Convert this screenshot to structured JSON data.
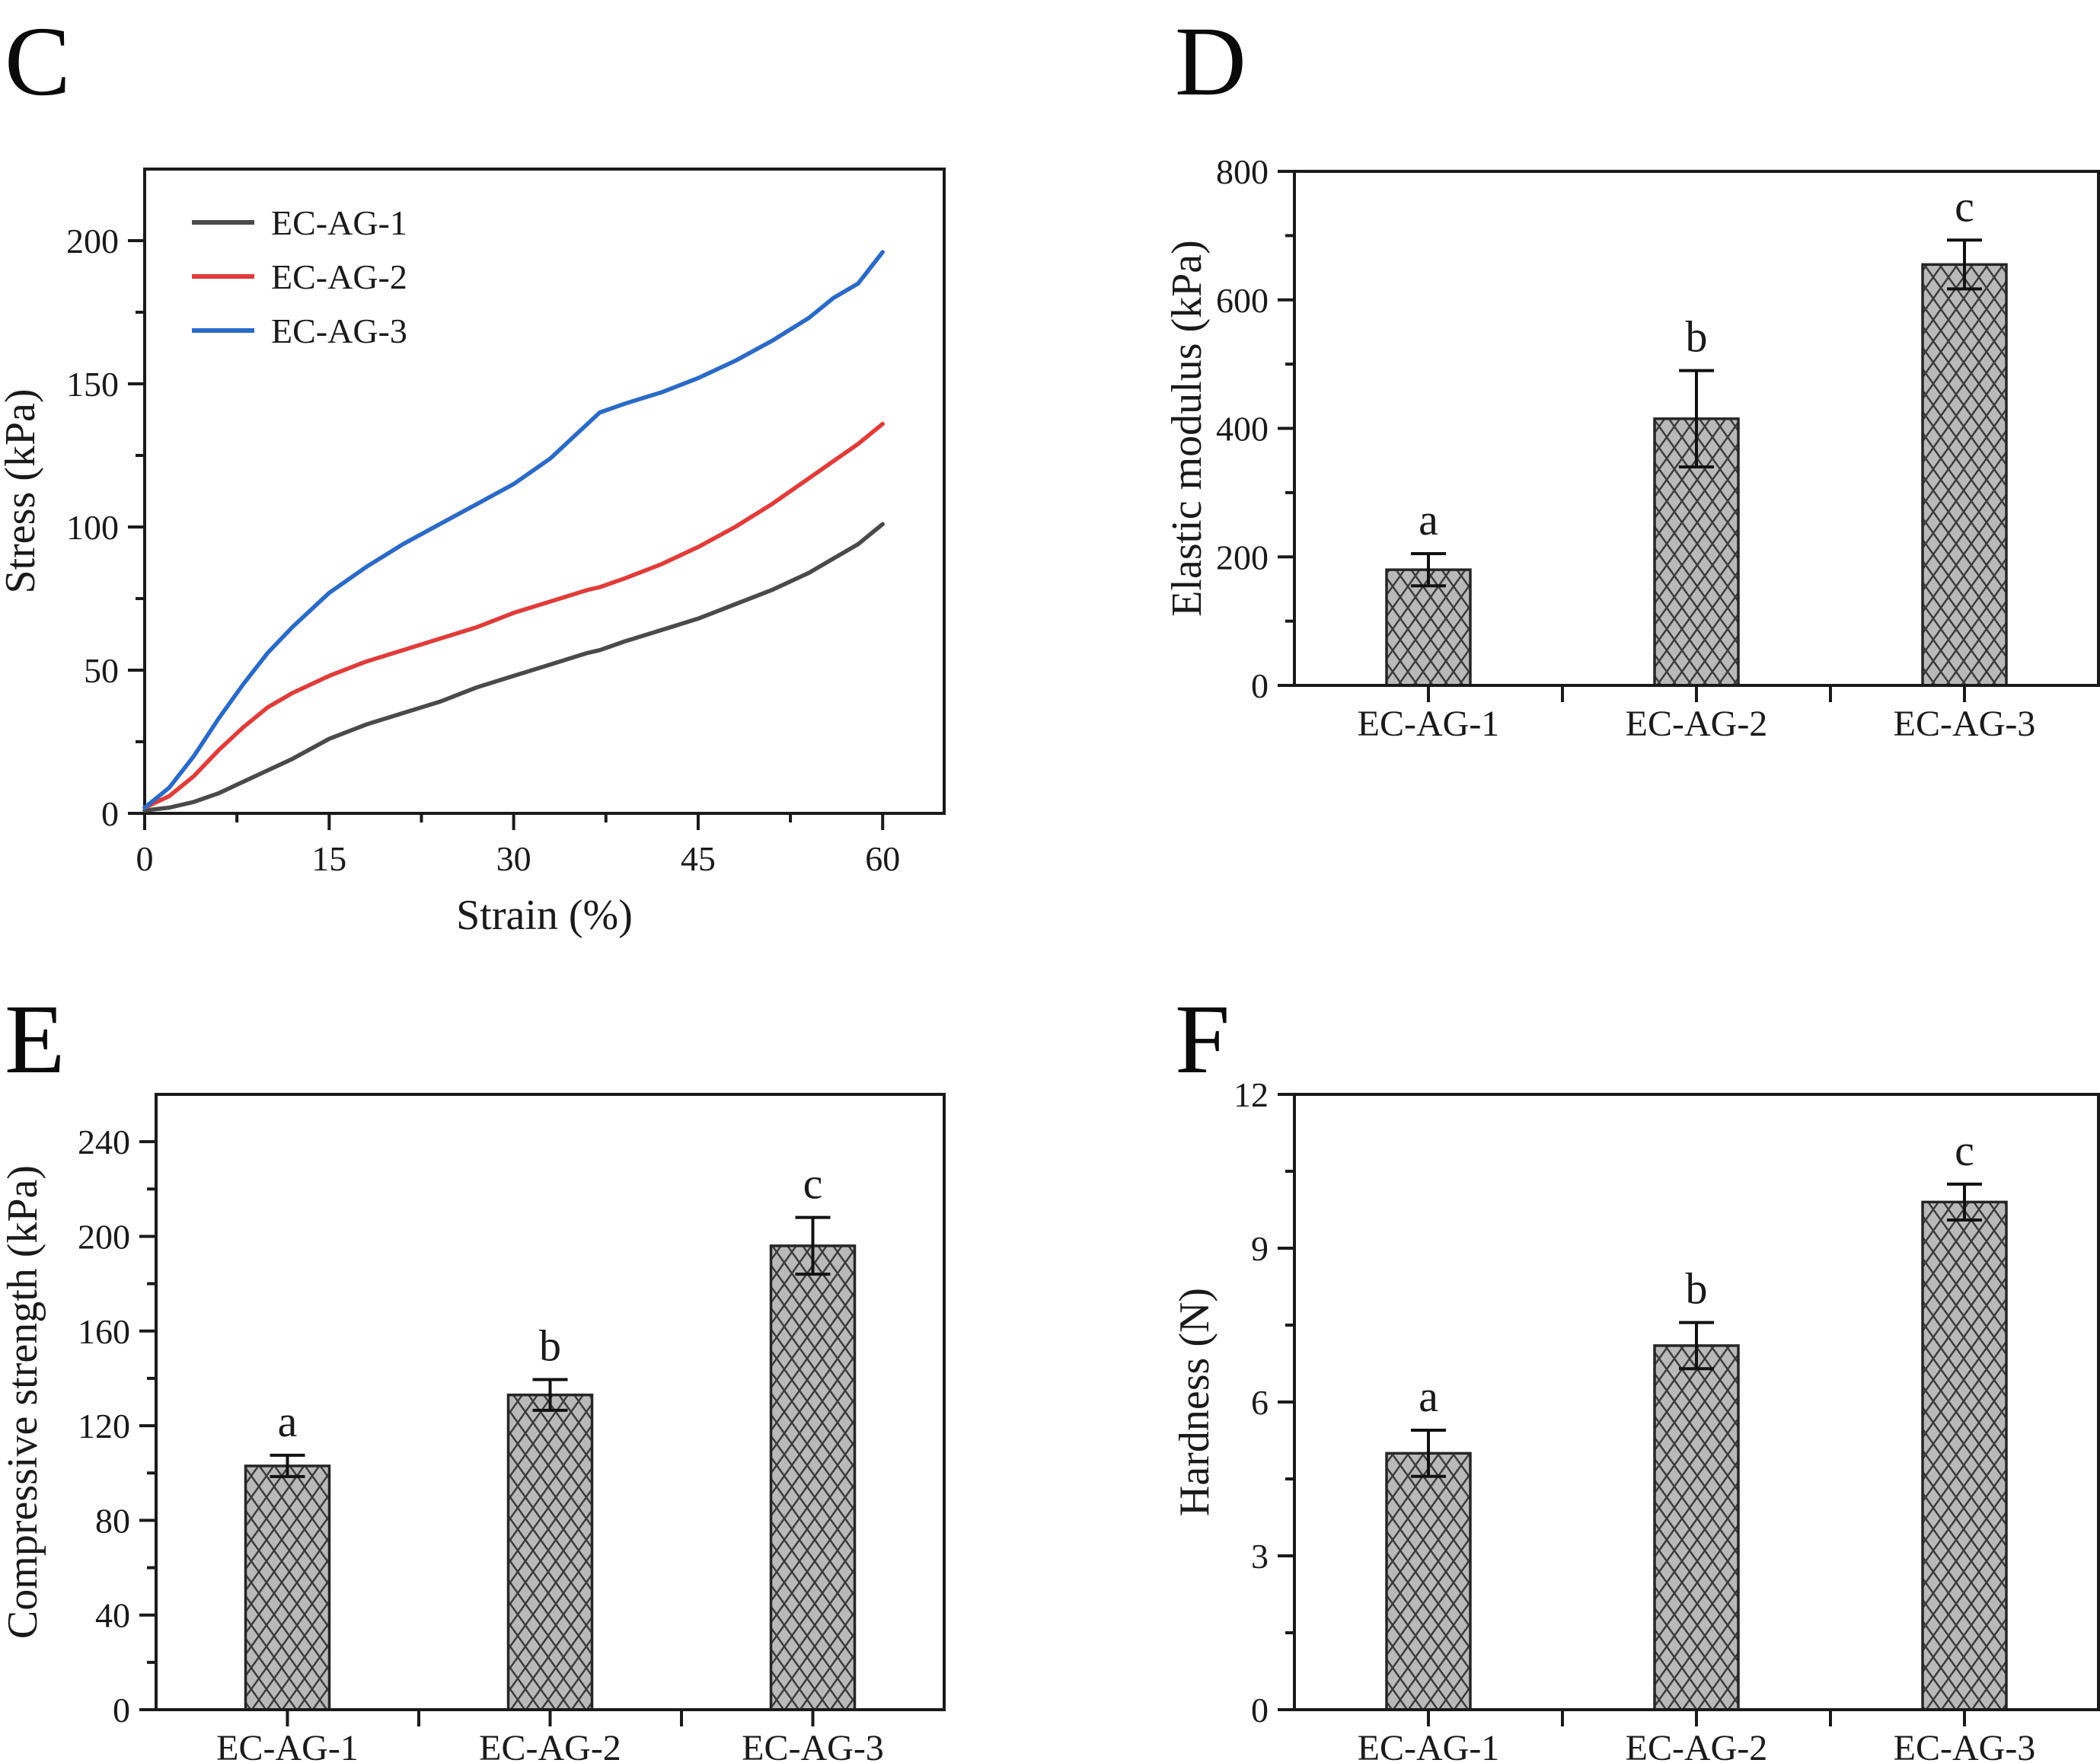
{
  "panels": [
    {
      "letter": "C"
    },
    {
      "letter": "D"
    },
    {
      "letter": "E"
    },
    {
      "letter": "F"
    }
  ],
  "style": {
    "axis_color": "#1a1a1a",
    "bar_fill": "#b9b9b9",
    "bar_hatch": "#3a3a3a",
    "bar_edge": "#262626",
    "error_bar_color": "#111111"
  },
  "chart_data": [
    {
      "id": "C",
      "type": "line",
      "title": "",
      "xlabel": "Strain (%)",
      "ylabel": "Stress (kPa)",
      "xlim": [
        0,
        65
      ],
      "ylim": [
        0,
        225
      ],
      "xticks": [
        0,
        15,
        30,
        45,
        60
      ],
      "yticks": [
        0,
        50,
        100,
        150,
        200
      ],
      "x_minor_step": 7.5,
      "y_minor_step": 25,
      "grid": false,
      "legend_position": "top-left",
      "x": [
        0,
        2,
        4,
        6,
        8,
        10,
        12,
        15,
        18,
        21,
        24,
        27,
        30,
        33,
        36,
        37,
        39,
        42,
        45,
        48,
        51,
        54,
        56,
        58,
        60
      ],
      "series": [
        {
          "name": "EC-AG-1",
          "color": "#4a4a4a",
          "y": [
            1,
            2,
            4,
            7,
            11,
            15,
            19,
            26,
            31,
            35,
            39,
            44,
            48,
            52,
            56,
            57,
            60,
            64,
            68,
            73,
            78,
            84,
            89,
            94,
            101
          ]
        },
        {
          "name": "EC-AG-2",
          "color": "#e03c3a",
          "y": [
            2,
            6,
            13,
            22,
            30,
            37,
            42,
            48,
            53,
            57,
            61,
            65,
            70,
            74,
            78,
            79,
            82,
            87,
            93,
            100,
            108,
            117,
            123,
            129,
            136
          ]
        },
        {
          "name": "EC-AG-3",
          "color": "#2b6ac6",
          "y": [
            2,
            9,
            20,
            33,
            45,
            56,
            65,
            77,
            86,
            94,
            101,
            108,
            115,
            124,
            136,
            140,
            143,
            147,
            152,
            158,
            165,
            173,
            180,
            185,
            196
          ]
        }
      ]
    },
    {
      "id": "D",
      "type": "bar",
      "title": "",
      "xlabel": "",
      "ylabel": "Elastic modulus (kPa)",
      "categories": [
        "EC-AG-1",
        "EC-AG-2",
        "EC-AG-3"
      ],
      "values": [
        180,
        415,
        655
      ],
      "errors": [
        25,
        75,
        38
      ],
      "sig_letters": [
        "a",
        "b",
        "c"
      ],
      "ylim": [
        0,
        800
      ],
      "yticks": [
        0,
        200,
        400,
        600,
        800
      ],
      "y_minor_step": 100,
      "grid": false,
      "legend_position": "none"
    },
    {
      "id": "E",
      "type": "bar",
      "title": "",
      "xlabel": "",
      "ylabel": "Compressive strength (kPa)",
      "categories": [
        "EC-AG-1",
        "EC-AG-2",
        "EC-AG-3"
      ],
      "values": [
        103,
        133,
        196
      ],
      "errors": [
        4.5,
        6.5,
        12
      ],
      "sig_letters": [
        "a",
        "b",
        "c"
      ],
      "ylim": [
        0,
        260
      ],
      "yticks": [
        0,
        40,
        80,
        120,
        160,
        200,
        240
      ],
      "y_minor_step": 20,
      "grid": false,
      "legend_position": "none"
    },
    {
      "id": "F",
      "type": "bar",
      "title": "",
      "xlabel": "",
      "ylabel": "Hardness (N)",
      "categories": [
        "EC-AG-1",
        "EC-AG-2",
        "EC-AG-3"
      ],
      "values": [
        5.0,
        7.1,
        9.9
      ],
      "errors": [
        0.45,
        0.45,
        0.35
      ],
      "sig_letters": [
        "a",
        "b",
        "c"
      ],
      "ylim": [
        0,
        12
      ],
      "yticks": [
        0,
        3,
        6,
        9,
        12
      ],
      "y_minor_step": 1.5,
      "grid": false,
      "legend_position": "none"
    }
  ]
}
